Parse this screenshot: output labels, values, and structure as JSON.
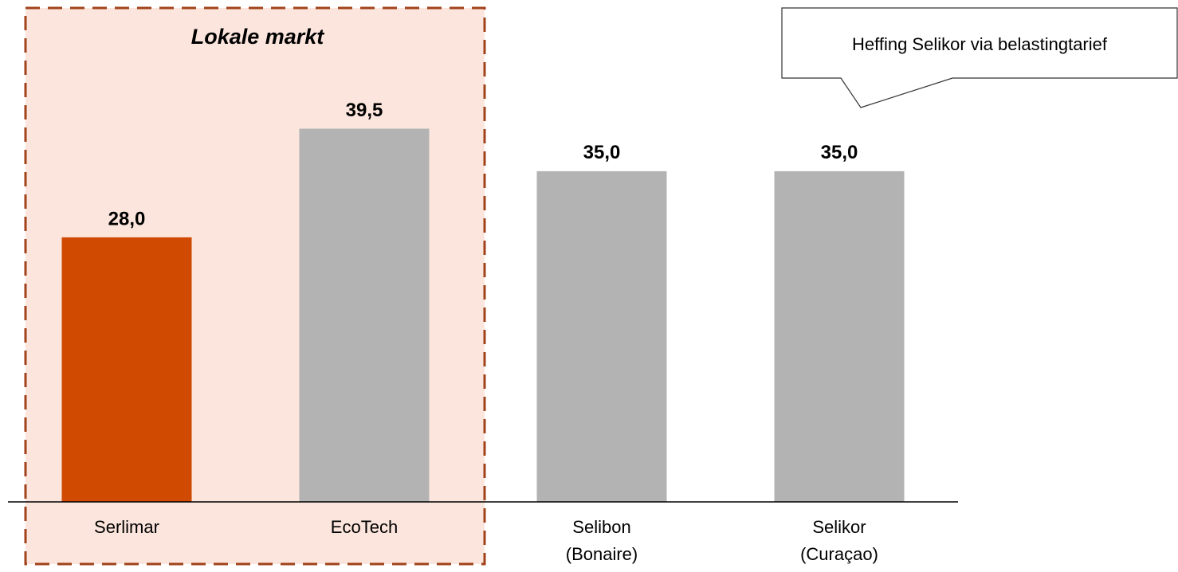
{
  "chart_data": {
    "type": "bar",
    "categories": [
      [
        "Serlimar"
      ],
      [
        "EcoTech"
      ],
      [
        "Selibon",
        "(Bonaire)"
      ],
      [
        "Selikor",
        "(Curaçao)"
      ]
    ],
    "values": [
      28.0,
      39.5,
      35.0,
      35.0
    ],
    "value_labels": [
      "28,0",
      "39,5",
      "35,0",
      "35,0"
    ],
    "colors": [
      "#d04a02",
      "#b3b3b3",
      "#b3b3b3",
      "#b3b3b3"
    ],
    "ylim": [
      0,
      50
    ],
    "annotations": {
      "group_label": "Lokale markt",
      "callout": "Heffing Selikor via belastingtarief"
    }
  }
}
